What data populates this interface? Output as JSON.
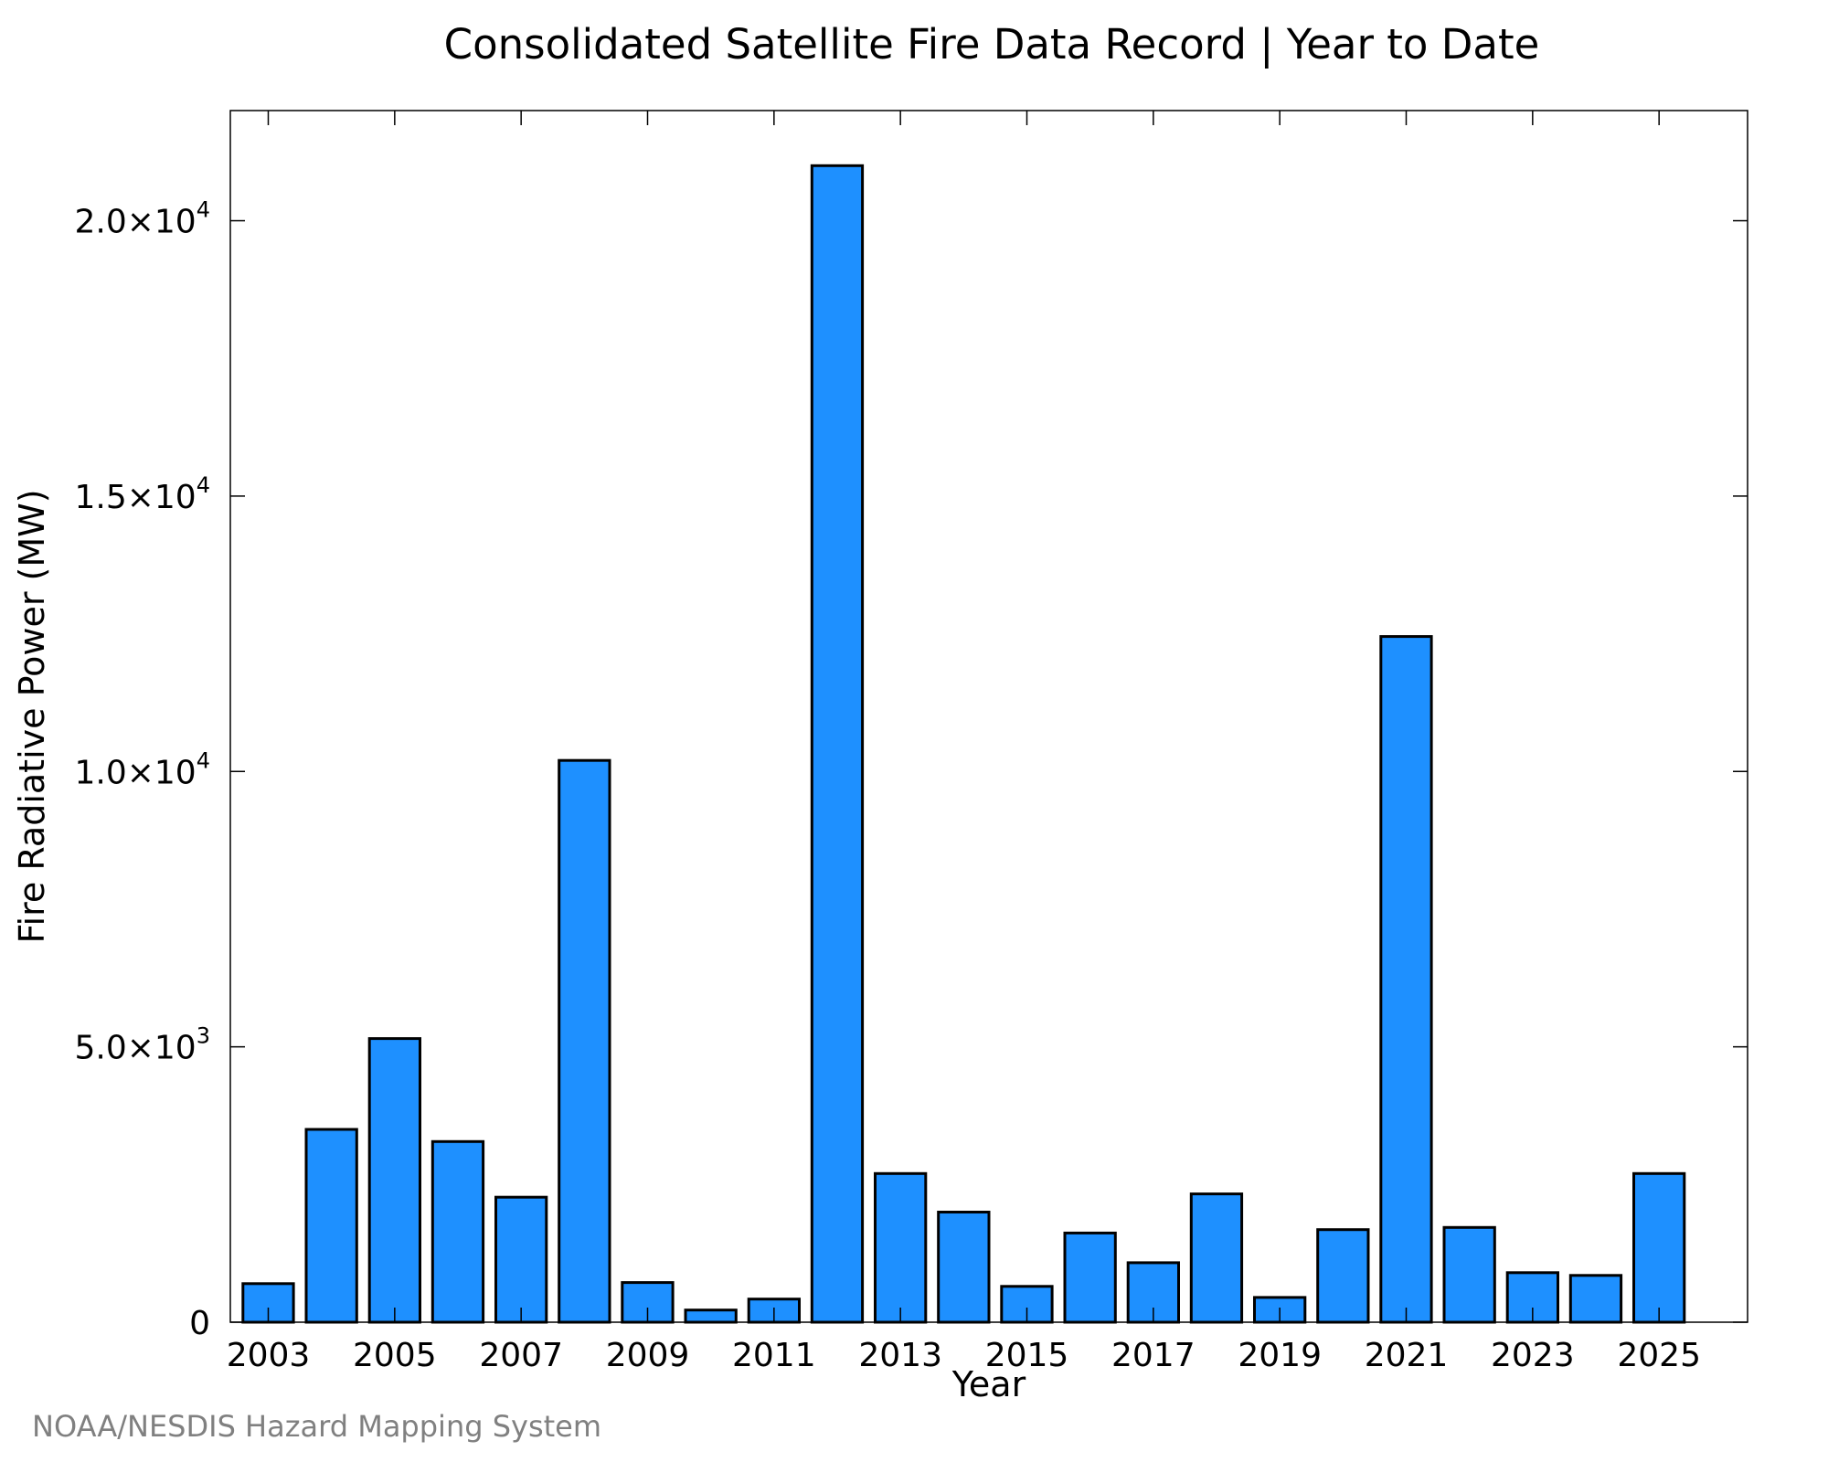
{
  "chart_data": {
    "type": "bar",
    "title": "Consolidated Satellite Fire Data Record | Year to Date",
    "xlabel": "Year",
    "ylabel": "Fire Radiative Power (MW)",
    "credit": "NOAA/NESDIS Hazard Mapping System",
    "categories": [
      "2003",
      "2004",
      "2005",
      "2006",
      "2007",
      "2008",
      "2009",
      "2010",
      "2011",
      "2012",
      "2013",
      "2014",
      "2015",
      "2016",
      "2017",
      "2018",
      "2019",
      "2020",
      "2021",
      "2022",
      "2023",
      "2024",
      "2025"
    ],
    "values": [
      700,
      3500,
      5150,
      3280,
      2270,
      10200,
      720,
      220,
      420,
      21000,
      2700,
      2000,
      650,
      1620,
      1080,
      2330,
      450,
      1680,
      12450,
      1720,
      900,
      850,
      2700
    ],
    "xtick_labels": [
      "2003",
      "2005",
      "2007",
      "2009",
      "2011",
      "2013",
      "2015",
      "2017",
      "2019",
      "2021",
      "2023",
      "2025"
    ],
    "ytick_values": [
      0,
      5000,
      10000,
      15000,
      20000
    ],
    "ytick_labels": [
      {
        "mantissa": "0",
        "exponent": ""
      },
      {
        "mantissa": "5.0×10",
        "exponent": "3"
      },
      {
        "mantissa": "1.0×10",
        "exponent": "4"
      },
      {
        "mantissa": "1.5×10",
        "exponent": "4"
      },
      {
        "mantissa": "2.0×10",
        "exponent": "4"
      }
    ],
    "ylim": [
      0,
      22000
    ],
    "xlim": [
      2002.4,
      2026.4
    ],
    "grid": false,
    "bar_color": "#1e90ff",
    "bar_edge_color": "#000000"
  }
}
